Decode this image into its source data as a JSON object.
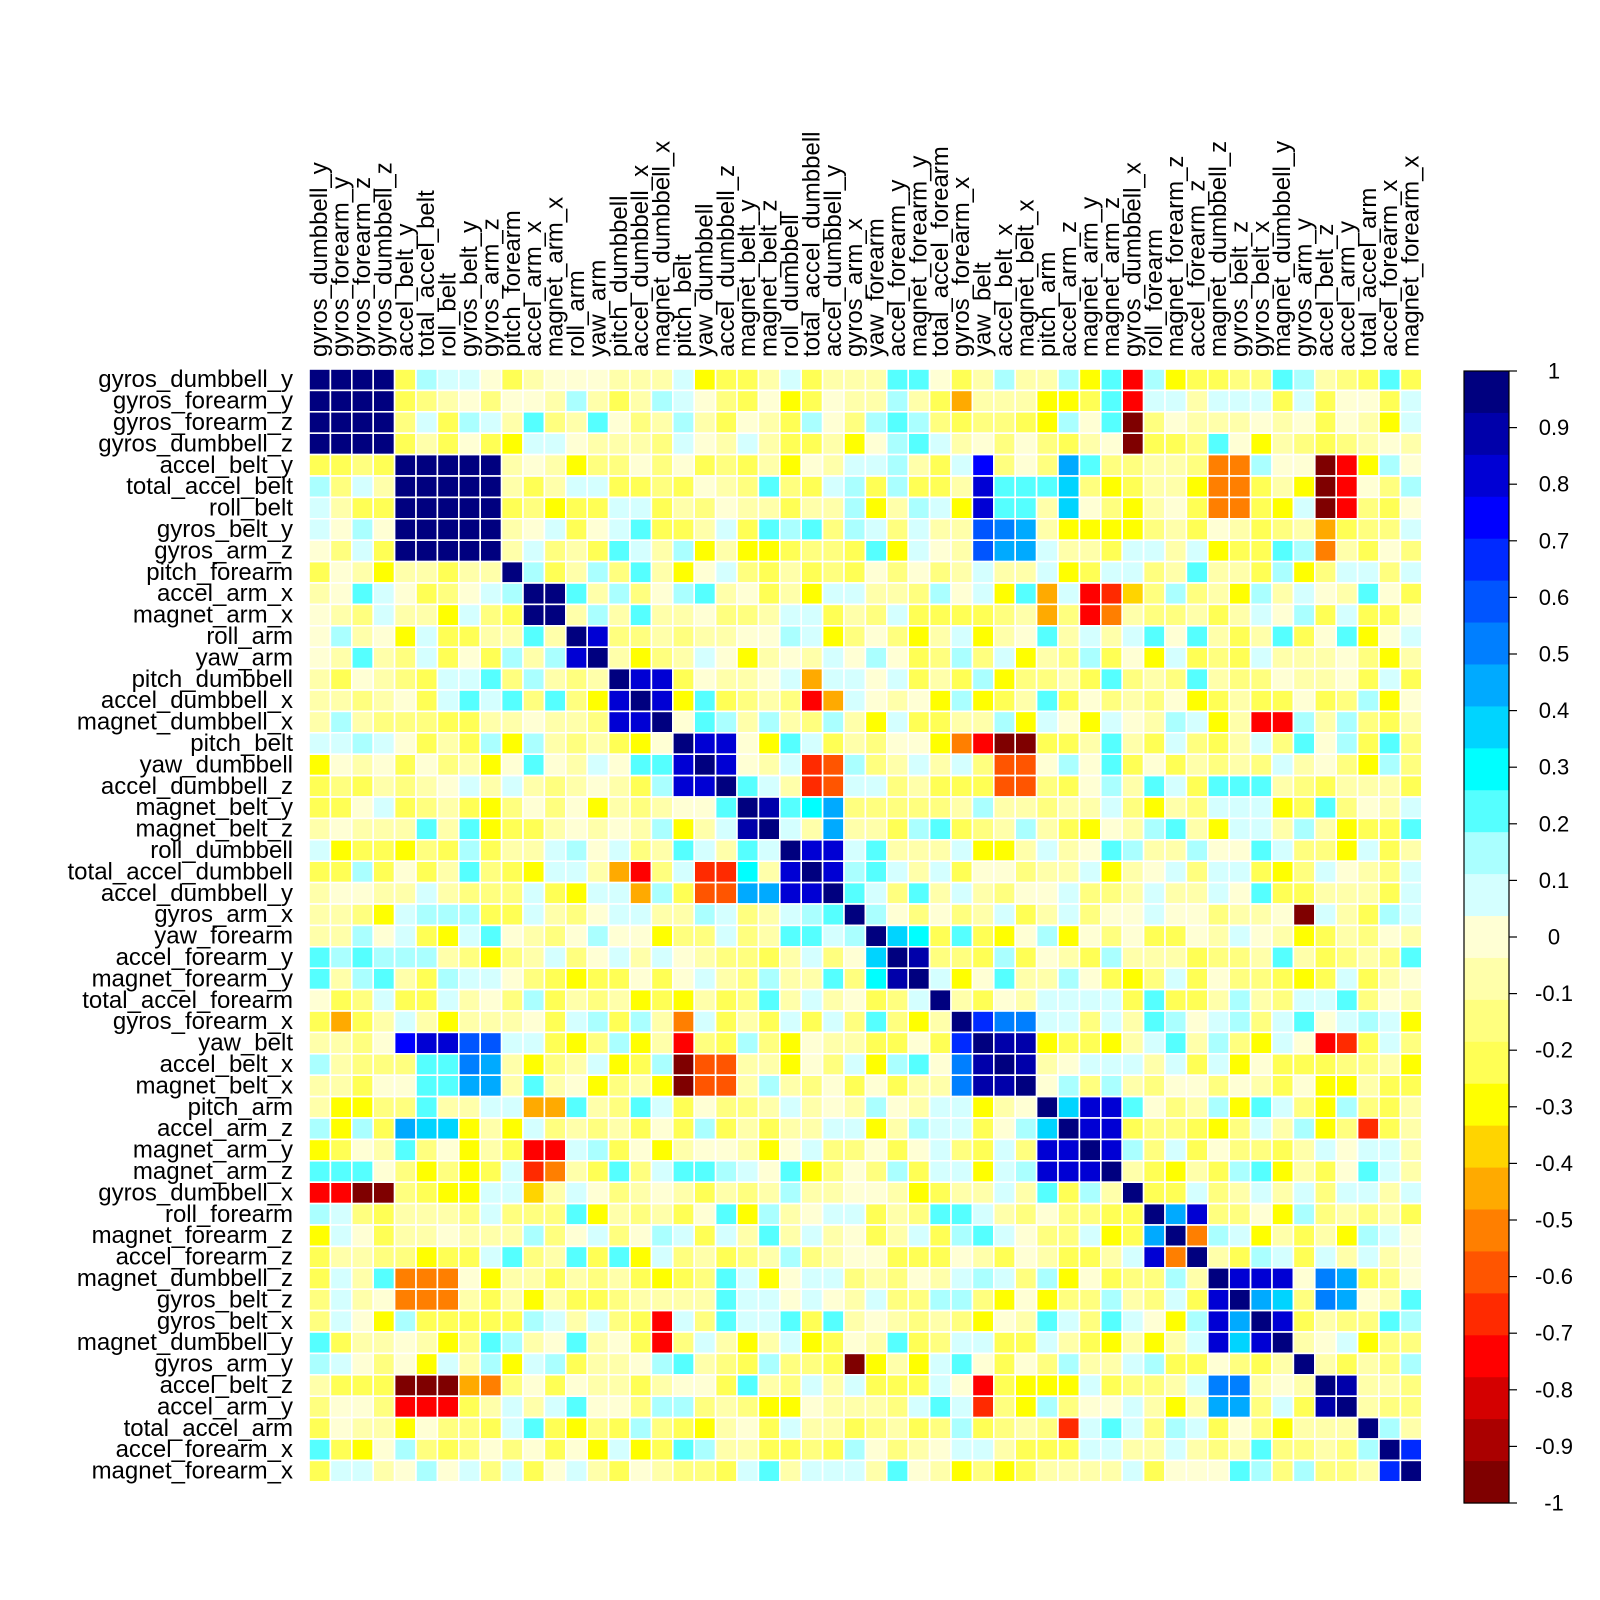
{
  "chart_data": {
    "type": "heatmap",
    "title": "",
    "xlabel": "",
    "ylabel": "",
    "variables": [
      "gyros_dumbbell_y",
      "gyros_forearm_y",
      "gyros_forearm_z",
      "gyros_dumbbell_z",
      "accel_belt_y",
      "total_accel_belt",
      "roll_belt",
      "gyros_belt_y",
      "gyros_arm_z",
      "pitch_forearm",
      "accel_arm_x",
      "magnet_arm_x",
      "roll_arm",
      "yaw_arm",
      "pitch_dumbbell",
      "accel_dumbbell_x",
      "magnet_dumbbell_x",
      "pitch_belt",
      "yaw_dumbbell",
      "accel_dumbbell_z",
      "magnet_belt_y",
      "magnet_belt_z",
      "roll_dumbbell",
      "total_accel_dumbbell",
      "accel_dumbbell_y",
      "gyros_arm_x",
      "yaw_forearm",
      "accel_forearm_y",
      "magnet_forearm_y",
      "total_accel_forearm",
      "gyros_forearm_x",
      "yaw_belt",
      "accel_belt_x",
      "magnet_belt_x",
      "pitch_arm",
      "accel_arm_z",
      "magnet_arm_y",
      "magnet_arm_z",
      "gyros_dumbbell_x",
      "roll_forearm",
      "magnet_forearm_z",
      "accel_forearm_z",
      "magnet_dumbbell_z",
      "gyros_belt_z",
      "gyros_belt_x",
      "magnet_dumbbell_y",
      "gyros_arm_y",
      "accel_belt_z",
      "accel_arm_y",
      "total_accel_arm",
      "accel_forearm_x",
      "magnet_forearm_x"
    ],
    "groups": [
      [
        0,
        1,
        2,
        3
      ],
      [
        4,
        5,
        6,
        7,
        8
      ],
      [
        9
      ],
      [
        10,
        11
      ],
      [
        12,
        13
      ],
      [
        14,
        15,
        16
      ],
      [
        17,
        18,
        19
      ],
      [
        20,
        21
      ],
      [
        22,
        23,
        24
      ],
      [
        25
      ],
      [
        26
      ],
      [
        27,
        28
      ],
      [
        29
      ],
      [
        30,
        31,
        32,
        33
      ],
      [
        34,
        35,
        36,
        37
      ],
      [
        38
      ],
      [
        39,
        40,
        41
      ],
      [
        42,
        43,
        44,
        45
      ],
      [
        46
      ],
      [
        47,
        48
      ],
      [
        49
      ],
      [
        50,
        51
      ]
    ],
    "group_corr": [
      0.95,
      0.95,
      1,
      0.95,
      0.85,
      0.85,
      0.85,
      0.9,
      0.85,
      1,
      1,
      0.9,
      1,
      0.9,
      0.85,
      1,
      0.85,
      0.85,
      1,
      0.9,
      1,
      0.9
    ],
    "strong_pairs": [
      {
        "a": "gyros_dumbbell_x",
        "b": "gyros_dumbbell_y",
        "value": -0.75
      },
      {
        "a": "gyros_dumbbell_x",
        "b": "gyros_forearm_y",
        "value": -0.75
      },
      {
        "a": "gyros_dumbbell_x",
        "b": "gyros_forearm_z",
        "value": -0.95
      },
      {
        "a": "gyros_dumbbell_x",
        "b": "gyros_dumbbell_z",
        "value": -0.95
      },
      {
        "a": "gyros_forearm_x",
        "b": "gyros_dumbbell_y",
        "value": -0.25
      },
      {
        "a": "gyros_forearm_x",
        "b": "gyros_forearm_y",
        "value": -0.45
      },
      {
        "a": "accel_belt_z",
        "b": "accel_belt_y",
        "value": -0.95
      },
      {
        "a": "accel_belt_z",
        "b": "total_accel_belt",
        "value": -0.95
      },
      {
        "a": "accel_belt_z",
        "b": "roll_belt",
        "value": -0.95
      },
      {
        "a": "accel_arm_y",
        "b": "accel_belt_y",
        "value": -0.75
      },
      {
        "a": "accel_arm_y",
        "b": "total_accel_belt",
        "value": -0.75
      },
      {
        "a": "accel_arm_y",
        "b": "roll_belt",
        "value": -0.75
      },
      {
        "a": "accel_belt_z",
        "b": "gyros_belt_y",
        "value": -0.45
      },
      {
        "a": "accel_belt_z",
        "b": "gyros_arm_z",
        "value": -0.55
      },
      {
        "a": "magnet_dumbbell_z",
        "b": "accel_belt_y",
        "value": -0.55
      },
      {
        "a": "magnet_dumbbell_z",
        "b": "total_accel_belt",
        "value": -0.55
      },
      {
        "a": "magnet_dumbbell_z",
        "b": "roll_belt",
        "value": -0.5
      },
      {
        "a": "gyros_belt_z",
        "b": "accel_belt_y",
        "value": -0.55
      },
      {
        "a": "gyros_belt_z",
        "b": "total_accel_belt",
        "value": -0.55
      },
      {
        "a": "gyros_belt_z",
        "b": "roll_belt",
        "value": -0.5
      },
      {
        "a": "yaw_belt",
        "b": "accel_belt_y",
        "value": 0.75
      },
      {
        "a": "yaw_belt",
        "b": "total_accel_belt",
        "value": 0.8
      },
      {
        "a": "yaw_belt",
        "b": "roll_belt",
        "value": 0.8
      },
      {
        "a": "yaw_belt",
        "b": "gyros_belt_y",
        "value": 0.6
      },
      {
        "a": "yaw_belt",
        "b": "gyros_arm_z",
        "value": 0.6
      },
      {
        "a": "accel_belt_x",
        "b": "gyros_belt_y",
        "value": 0.5
      },
      {
        "a": "accel_belt_x",
        "b": "gyros_arm_z",
        "value": 0.45
      },
      {
        "a": "magnet_belt_x",
        "b": "gyros_belt_y",
        "value": 0.45
      },
      {
        "a": "magnet_belt_x",
        "b": "gyros_arm_z",
        "value": 0.45
      },
      {
        "a": "accel_belt_x",
        "b": "total_accel_belt",
        "value": 0.25
      },
      {
        "a": "accel_belt_x",
        "b": "roll_belt",
        "value": 0.25
      },
      {
        "a": "magnet_belt_x",
        "b": "total_accel_belt",
        "value": 0.25
      },
      {
        "a": "magnet_belt_x",
        "b": "roll_belt",
        "value": 0.25
      },
      {
        "a": "accel_arm_z",
        "b": "accel_belt_y",
        "value": 0.45
      },
      {
        "a": "accel_arm_z",
        "b": "total_accel_belt",
        "value": 0.35
      },
      {
        "a": "accel_arm_z",
        "b": "roll_belt",
        "value": 0.35
      },
      {
        "a": "pitch_belt",
        "b": "accel_belt_x",
        "value": -0.95
      },
      {
        "a": "pitch_belt",
        "b": "magnet_belt_x",
        "value": -0.95
      },
      {
        "a": "pitch_belt",
        "b": "yaw_belt",
        "value": -0.75
      },
      {
        "a": "pitch_belt",
        "b": "gyros_forearm_x",
        "value": -0.55
      },
      {
        "a": "yaw_dumbbell",
        "b": "accel_belt_x",
        "value": -0.6
      },
      {
        "a": "yaw_dumbbell",
        "b": "magnet_belt_x",
        "value": -0.6
      },
      {
        "a": "accel_dumbbell_z",
        "b": "accel_belt_x",
        "value": -0.6
      },
      {
        "a": "accel_dumbbell_z",
        "b": "magnet_belt_x",
        "value": -0.6
      },
      {
        "a": "magnet_arm_y",
        "b": "accel_arm_x",
        "value": -0.75
      },
      {
        "a": "magnet_arm_y",
        "b": "magnet_arm_x",
        "value": -0.75
      },
      {
        "a": "magnet_arm_z",
        "b": "accel_arm_x",
        "value": -0.65
      },
      {
        "a": "magnet_arm_z",
        "b": "magnet_arm_x",
        "value": -0.55
      },
      {
        "a": "pitch_arm",
        "b": "accel_arm_x",
        "value": -0.45
      },
      {
        "a": "pitch_arm",
        "b": "magnet_arm_x",
        "value": -0.45
      },
      {
        "a": "gyros_arm_y",
        "b": "gyros_arm_x",
        "value": -0.95
      },
      {
        "a": "magnet_dumbbell_y",
        "b": "magnet_dumbbell_x",
        "value": -0.75
      },
      {
        "a": "gyros_belt_x",
        "b": "magnet_dumbbell_x",
        "value": -0.75
      },
      {
        "a": "total_accel_dumbbell",
        "b": "accel_dumbbell_x",
        "value": -0.75
      },
      {
        "a": "total_accel_dumbbell",
        "b": "pitch_dumbbell",
        "value": -0.45
      },
      {
        "a": "accel_dumbbell_y",
        "b": "accel_dumbbell_x",
        "value": -0.45
      },
      {
        "a": "total_accel_dumbbell",
        "b": "yaw_dumbbell",
        "value": -0.65
      },
      {
        "a": "total_accel_dumbbell",
        "b": "accel_dumbbell_z",
        "value": -0.65
      },
      {
        "a": "accel_dumbbell_y",
        "b": "yaw_dumbbell",
        "value": -0.6
      },
      {
        "a": "accel_dumbbell_y",
        "b": "accel_dumbbell_z",
        "value": -0.6
      },
      {
        "a": "roll_dumbbell",
        "b": "magnet_belt_y",
        "value": 0.25
      },
      {
        "a": "total_accel_dumbbell",
        "b": "magnet_belt_y",
        "value": 0.3
      },
      {
        "a": "accel_dumbbell_y",
        "b": "magnet_belt_y",
        "value": 0.45
      },
      {
        "a": "accel_dumbbell_y",
        "b": "magnet_belt_z",
        "value": 0.45
      },
      {
        "a": "magnet_forearm_z",
        "b": "roll_forearm",
        "value": 0.45
      },
      {
        "a": "accel_forearm_z",
        "b": "magnet_forearm_z",
        "value": -0.55
      },
      {
        "a": "accel_arm_y",
        "b": "accel_belt_z",
        "value": 0.9
      },
      {
        "a": "magnet_forearm_x",
        "b": "accel_forearm_x",
        "value": 0.7
      },
      {
        "a": "accel_forearm_y",
        "b": "yaw_forearm",
        "value": 0.35
      },
      {
        "a": "magnet_forearm_y",
        "b": "yaw_forearm",
        "value": 0.3
      },
      {
        "a": "accel_arm_z",
        "b": "pitch_arm",
        "value": 0.35
      },
      {
        "a": "gyros_belt_x",
        "b": "gyros_belt_z",
        "value": 0.45
      },
      {
        "a": "magnet_dumbbell_y",
        "b": "gyros_belt_z",
        "value": 0.4
      },
      {
        "a": "total_accel_arm",
        "b": "accel_arm_z",
        "value": -0.65
      },
      {
        "a": "accel_belt_z",
        "b": "magnet_dumbbell_z",
        "value": 0.55
      },
      {
        "a": "accel_arm_y",
        "b": "magnet_dumbbell_z",
        "value": 0.45
      },
      {
        "a": "accel_belt_z",
        "b": "gyros_belt_z",
        "value": 0.5
      },
      {
        "a": "accel_arm_y",
        "b": "gyros_belt_z",
        "value": 0.45
      },
      {
        "a": "accel_belt_z",
        "b": "yaw_belt",
        "value": -0.75
      },
      {
        "a": "accel_arm_y",
        "b": "yaw_belt",
        "value": -0.65
      },
      {
        "a": "gyros_forearm_x",
        "b": "accel_belt_x",
        "value": 0.55
      },
      {
        "a": "gyros_forearm_x",
        "b": "magnet_belt_x",
        "value": 0.55
      },
      {
        "a": "gyros_forearm_x",
        "b": "yaw_belt",
        "value": 0.7
      }
    ],
    "colorbar": {
      "ticks": [
        "1",
        "0.9",
        "0.8",
        "0.7",
        "0.6",
        "0.5",
        "0.4",
        "0.3",
        "0.2",
        "0.1",
        "0",
        "-0.1",
        "-0.2",
        "-0.3",
        "-0.4",
        "-0.5",
        "-0.6",
        "-0.7",
        "-0.8",
        "-0.9",
        "-1"
      ],
      "colors": [
        "#00007F",
        "#0000AA",
        "#0000D4",
        "#0000FF",
        "#002AFF",
        "#0055FF",
        "#007FFF",
        "#00AAFF",
        "#00D4FF",
        "#00FFFF",
        "#55FFFF",
        "#AAFFFF",
        "#D4FFFF",
        "#FFFFD4",
        "#FFFFAA",
        "#FFFF7F",
        "#FFFF55",
        "#FFFF00",
        "#FFD400",
        "#FFAA00",
        "#FF7F00",
        "#FF5500",
        "#FF2A00",
        "#FF0000",
        "#D40000",
        "#AA0000",
        "#7F0000"
      ],
      "range": [
        -1,
        1
      ]
    }
  }
}
